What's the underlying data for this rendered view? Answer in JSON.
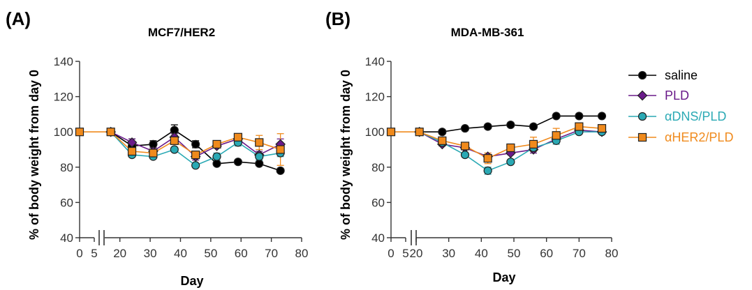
{
  "colors": {
    "saline": "#000000",
    "PLD": "#6a1b8a",
    "aDNS_PLD": "#2aa9b4",
    "aHER2_PLD": "#f08a1c",
    "axis": "#333333"
  },
  "chart_data": [
    {
      "panel": "(A)",
      "type": "line",
      "title": "MCF7/HER2",
      "xlabel": "Day",
      "ylabel": "% of body weight from day 0",
      "ylim": [
        40,
        140
      ],
      "yticks": [
        40,
        60,
        80,
        100,
        120,
        140
      ],
      "x_break": {
        "segment1": [
          0,
          5
        ],
        "segment2": [
          15,
          80
        ]
      },
      "xticks": [
        "0",
        "5",
        "20",
        "30",
        "40",
        "50",
        "60",
        "70",
        "80"
      ],
      "xtick_values": [
        0,
        5,
        20,
        30,
        40,
        50,
        60,
        70,
        80
      ],
      "series": [
        {
          "name": "saline",
          "color_key": "saline",
          "marker": "circle",
          "x": [
            0,
            17,
            24,
            31,
            38,
            45,
            52,
            59,
            66,
            73
          ],
          "y": [
            100,
            100,
            92,
            93,
            101,
            93,
            82,
            83,
            82,
            78
          ],
          "err": [
            0,
            0,
            4,
            2,
            3,
            2,
            0,
            0,
            0,
            0
          ]
        },
        {
          "name": "PLD",
          "color_key": "PLD",
          "marker": "diamond",
          "x": [
            0,
            17,
            24,
            31,
            38,
            45,
            52,
            59,
            66,
            73
          ],
          "y": [
            100,
            100,
            94,
            89,
            97,
            86,
            92,
            96,
            87,
            93
          ],
          "err": [
            0,
            0,
            2,
            2,
            2,
            2,
            1,
            2,
            2,
            3
          ]
        },
        {
          "name": "αDNS/PLD",
          "color_key": "aDNS_PLD",
          "marker": "circle",
          "x": [
            0,
            17,
            24,
            31,
            38,
            45,
            52,
            59,
            66,
            73
          ],
          "y": [
            100,
            100,
            87,
            86,
            90,
            81,
            86,
            94,
            86,
            88
          ],
          "err": [
            0,
            0,
            1,
            1,
            1,
            1,
            2,
            2,
            2,
            2
          ]
        },
        {
          "name": "αHER2/PLD",
          "color_key": "aHER2_PLD",
          "marker": "square",
          "x": [
            0,
            17,
            24,
            31,
            38,
            45,
            52,
            59,
            66,
            73
          ],
          "y": [
            100,
            100,
            89,
            88,
            95,
            87,
            93,
            97,
            94,
            90
          ],
          "err": [
            0,
            0,
            2,
            2,
            2,
            2,
            2,
            2,
            4,
            9
          ]
        }
      ]
    },
    {
      "panel": "(B)",
      "type": "line",
      "title": "MDA-MB-361",
      "xlabel": "Day",
      "ylabel": "% of body weight from day 0",
      "ylim": [
        40,
        140
      ],
      "yticks": [
        40,
        60,
        80,
        100,
        120,
        140
      ],
      "x_break": {
        "segment1": [
          0,
          5
        ],
        "segment2": [
          20,
          80
        ]
      },
      "xticks": [
        "0",
        "5",
        "20",
        "30",
        "40",
        "50",
        "60",
        "70",
        "80"
      ],
      "xtick_values": [
        0,
        5,
        20,
        30,
        40,
        50,
        60,
        70,
        80
      ],
      "series": [
        {
          "name": "saline",
          "color_key": "saline",
          "marker": "circle",
          "x": [
            0,
            21,
            28,
            35,
            42,
            49,
            56,
            63,
            70,
            77
          ],
          "y": [
            100,
            100,
            100,
            102,
            103,
            104,
            103,
            109,
            109,
            109
          ],
          "err": [
            0,
            0,
            0,
            0,
            0,
            0,
            0,
            0,
            0,
            0
          ]
        },
        {
          "name": "PLD",
          "color_key": "PLD",
          "marker": "diamond",
          "x": [
            0,
            21,
            28,
            35,
            42,
            49,
            56,
            63,
            70,
            77
          ],
          "y": [
            100,
            100,
            93,
            91,
            86,
            88,
            90,
            96,
            101,
            100
          ],
          "err": [
            0,
            0,
            1,
            1,
            2,
            1,
            2,
            2,
            1,
            1
          ]
        },
        {
          "name": "αDNS/PLD",
          "color_key": "aDNS_PLD",
          "marker": "circle",
          "x": [
            0,
            21,
            28,
            35,
            42,
            49,
            56,
            63,
            70,
            77
          ],
          "y": [
            100,
            100,
            94,
            87,
            78,
            83,
            91,
            95,
            100,
            100
          ],
          "err": [
            0,
            0,
            1,
            1,
            2,
            1,
            2,
            2,
            1,
            1
          ]
        },
        {
          "name": "αHER2/PLD",
          "color_key": "aHER2_PLD",
          "marker": "square",
          "x": [
            0,
            21,
            28,
            35,
            42,
            49,
            56,
            63,
            70,
            77
          ],
          "y": [
            100,
            100,
            95,
            92,
            85,
            91,
            93,
            98,
            103,
            102
          ],
          "err": [
            0,
            0,
            1,
            1,
            3,
            2,
            4,
            4,
            1,
            1
          ]
        }
      ]
    }
  ],
  "legend": {
    "items": [
      {
        "label": "saline",
        "color_key": "saline",
        "marker": "circle"
      },
      {
        "label": "PLD",
        "color_key": "PLD",
        "marker": "diamond"
      },
      {
        "label": "αDNS/PLD",
        "color_key": "aDNS_PLD",
        "marker": "circle"
      },
      {
        "label": "αHER2/PLD",
        "color_key": "aHER2_PLD",
        "marker": "square"
      }
    ]
  }
}
